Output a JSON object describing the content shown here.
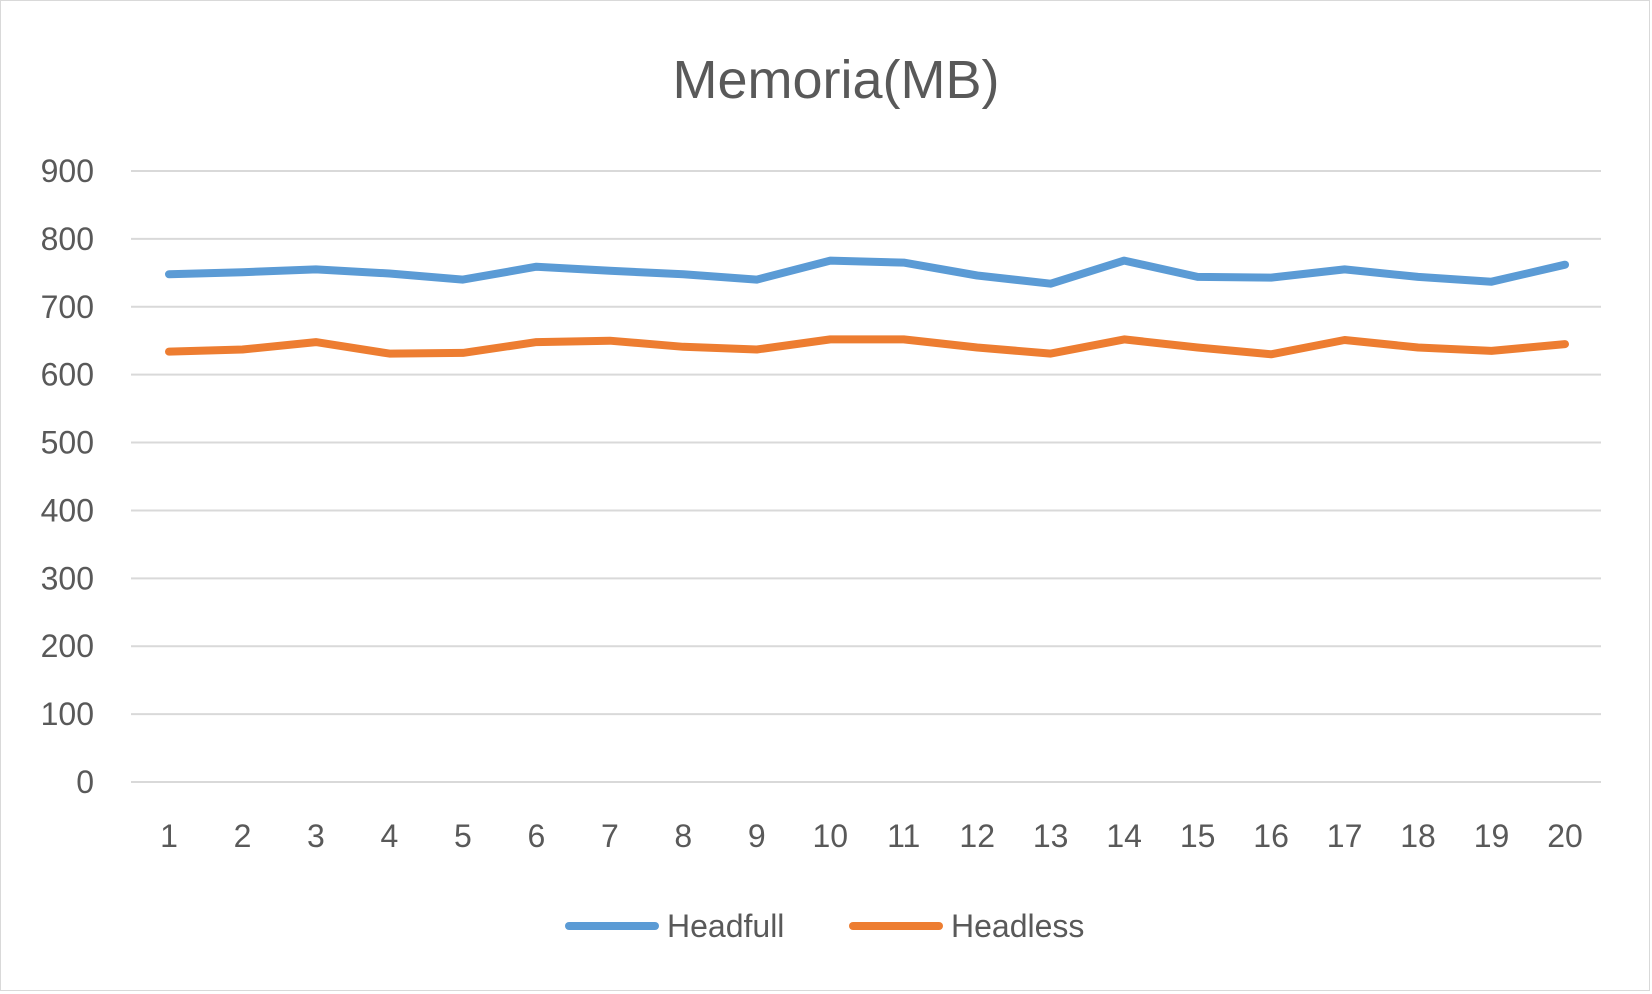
{
  "chart_data": {
    "type": "line",
    "title": "Memoria(MB)",
    "xlabel": "",
    "ylabel": "",
    "categories": [
      "1",
      "2",
      "3",
      "4",
      "5",
      "6",
      "7",
      "8",
      "9",
      "10",
      "11",
      "12",
      "13",
      "14",
      "15",
      "16",
      "17",
      "18",
      "19",
      "20"
    ],
    "ylim": [
      0,
      900
    ],
    "yticks": [
      0,
      100,
      200,
      300,
      400,
      500,
      600,
      700,
      800,
      900
    ],
    "grid": true,
    "legend_position": "bottom",
    "series": [
      {
        "name": "Headfull",
        "color": "#5b9bd5",
        "values": [
          748,
          751,
          755,
          749,
          740,
          759,
          753,
          748,
          740,
          768,
          765,
          746,
          734,
          768,
          744,
          743,
          755,
          744,
          737,
          762
        ]
      },
      {
        "name": "Headless",
        "color": "#ed7d31",
        "values": [
          634,
          637,
          648,
          631,
          632,
          648,
          650,
          641,
          637,
          652,
          652,
          640,
          631,
          652,
          640,
          630,
          651,
          640,
          635,
          645
        ]
      }
    ]
  }
}
